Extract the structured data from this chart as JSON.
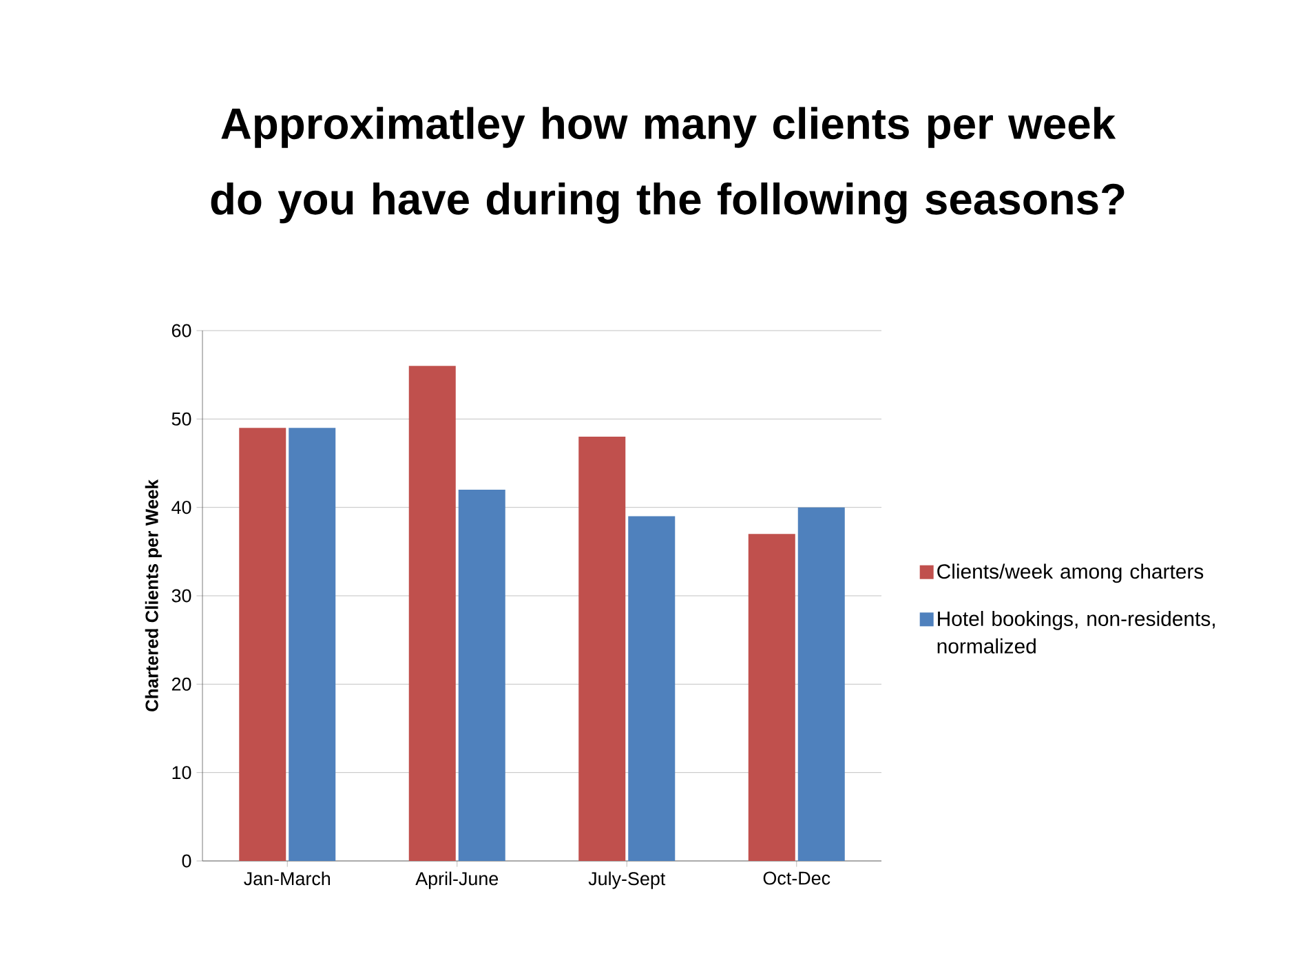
{
  "chart_data": {
    "type": "bar",
    "title": "Approximatley how many clients per week do you have during the following seasons?",
    "ylabel": "Chartered Clients per Week",
    "categories": [
      "Jan-March",
      "April-June",
      "July-Sept",
      "Oct-Dec"
    ],
    "series": [
      {
        "name": "Clients/week among charters",
        "color": "#c0504d",
        "values": [
          49,
          56,
          48,
          37
        ]
      },
      {
        "name": "Hotel bookings, non-residents, normalized",
        "color": "#4f81bd",
        "values": [
          49,
          42,
          39,
          40
        ]
      }
    ],
    "ylim": [
      0,
      60
    ],
    "yticks": [
      0,
      10,
      20,
      30,
      40,
      50,
      60
    ],
    "grid": "y",
    "legend": "right"
  }
}
